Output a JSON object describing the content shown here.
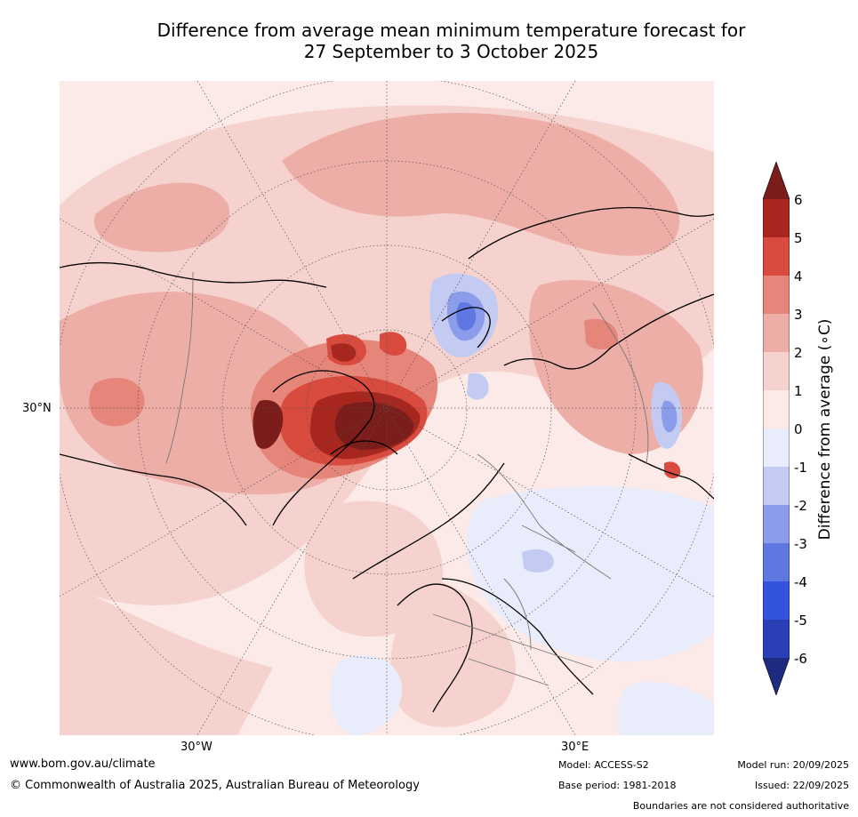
{
  "title": {
    "line1": "Difference from average mean minimum temperature forecast for",
    "line2": "27 September to 3 October 2025"
  },
  "map": {
    "lat_labels": [
      "30°N"
    ],
    "lon_labels": [
      "30°W",
      "30°E"
    ]
  },
  "colorbar": {
    "label": "Difference from average (∘C)",
    "ticks": [
      "6",
      "5",
      "4",
      "3",
      "2",
      "1",
      "0",
      "-1",
      "-2",
      "-3",
      "-4",
      "-5",
      "-6"
    ],
    "colors": {
      "above_6": "#7b1e1b",
      "5_6": "#a7271f",
      "4_5": "#d84b3e",
      "3_4": "#e6857a",
      "2_3": "#edaea8",
      "1_2": "#f5d2cd",
      "0_1": "#fbeae7",
      "m1_0": "#e8ecfb",
      "m2_m1": "#c3cbf3",
      "m3_m2": "#8b9cea",
      "m4_m3": "#5e77e1",
      "m5_m4": "#3352dd",
      "m6_m5": "#2a3fb5",
      "below_m6": "#1e2b80"
    }
  },
  "footer": {
    "website": "www.bom.gov.au/climate",
    "copyright": "© Commonwealth of Australia 2025, Australian Bureau of Meteorology",
    "model": "Model: ACCESS-S2",
    "base_period": "Base period: 1981-2018",
    "model_run": "Model run: 20/09/2025",
    "issued": "Issued: 22/09/2025",
    "disclaimer": "Boundaries are not considered authoritative"
  }
}
